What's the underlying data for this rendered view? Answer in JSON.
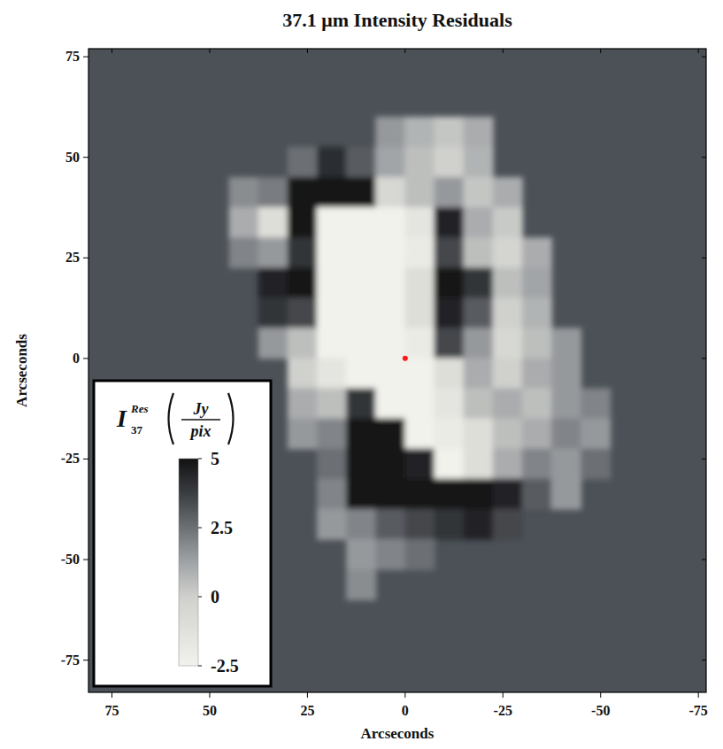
{
  "chart_data": {
    "type": "heatmap",
    "title": "37.1 μm Intensity Residuals",
    "x_label": "Arcseconds",
    "y_label": "Arcseconds",
    "xlim": [
      81,
      -77
    ],
    "ylim": [
      -83,
      77
    ],
    "xticks": [
      75,
      50,
      25,
      0,
      -25,
      -50,
      -75
    ],
    "yticks": [
      75,
      50,
      25,
      0,
      -25,
      -50,
      -75
    ],
    "x": [
      63.75,
      56.25,
      48.75,
      41.25,
      33.75,
      26.25,
      18.75,
      11.25,
      3.75,
      -3.75,
      -11.25,
      -18.75,
      -26.25,
      -33.75,
      -41.25,
      -48.75,
      -56.25
    ],
    "y": [
      63.75,
      56.25,
      48.75,
      41.25,
      33.75,
      26.25,
      18.75,
      11.25,
      3.75,
      -3.75,
      -11.25,
      -18.75,
      -26.25,
      -33.75,
      -41.25,
      -48.75,
      -56.25,
      -63.75
    ],
    "cells": [
      [
        null,
        null,
        null,
        null,
        null,
        null,
        null,
        null,
        null,
        null,
        null,
        null,
        null,
        null,
        null,
        null,
        null
      ],
      [
        null,
        null,
        null,
        null,
        null,
        null,
        null,
        null,
        1.5,
        0.8,
        0.3,
        1.0,
        null,
        null,
        null,
        null,
        null
      ],
      [
        null,
        null,
        null,
        null,
        null,
        2.5,
        4.2,
        3.0,
        1.2,
        0.5,
        0.0,
        0.8,
        null,
        null,
        null,
        null,
        null
      ],
      [
        null,
        null,
        null,
        1.8,
        2.2,
        5.5,
        5.8,
        5.0,
        -0.5,
        0.5,
        1.5,
        0.3,
        1.0,
        null,
        null,
        null,
        null
      ],
      [
        null,
        null,
        null,
        1.0,
        -1.0,
        5.5,
        -2.8,
        -3,
        -3,
        -1.5,
        4.5,
        1.0,
        0.2,
        null,
        null,
        null,
        null
      ],
      [
        null,
        null,
        null,
        2.0,
        1.5,
        4.0,
        -3,
        -3,
        -3,
        -2.0,
        3.5,
        0.5,
        -0.3,
        1.0,
        null,
        null,
        null
      ],
      [
        null,
        null,
        null,
        null,
        4.5,
        5.0,
        -3,
        -3,
        -3,
        -1.0,
        5.0,
        4.0,
        0.5,
        1.2,
        null,
        null,
        null
      ],
      [
        null,
        null,
        null,
        null,
        4.0,
        3.5,
        -3,
        -3,
        -3,
        -1.0,
        4.5,
        3.0,
        0.0,
        0.8,
        null,
        null,
        null
      ],
      [
        null,
        null,
        null,
        null,
        1.5,
        0.5,
        -2.5,
        -3,
        -3,
        -2.0,
        3.5,
        1.5,
        -0.5,
        0.5,
        1.5,
        null,
        null
      ],
      [
        null,
        null,
        null,
        null,
        null,
        0.0,
        -1.5,
        -3,
        -3,
        -2.5,
        -1.0,
        1.0,
        0.0,
        1.0,
        1.5,
        null,
        null
      ],
      [
        null,
        null,
        null,
        null,
        null,
        1.0,
        0.5,
        4.0,
        -3,
        -2.5,
        -1.5,
        0.5,
        1.0,
        0.5,
        1.5,
        2.0,
        null
      ],
      [
        null,
        null,
        null,
        null,
        null,
        1.5,
        2.0,
        5.5,
        5.0,
        -3,
        -2.0,
        -1.0,
        0.5,
        1.0,
        2.0,
        1.5,
        null
      ],
      [
        null,
        null,
        null,
        null,
        null,
        null,
        2.5,
        5.5,
        5.5,
        4.5,
        -2.5,
        -1.0,
        1.0,
        2.0,
        1.5,
        2.5,
        null
      ],
      [
        null,
        null,
        null,
        null,
        null,
        null,
        2.0,
        5.0,
        5.5,
        5.5,
        5.0,
        5.0,
        4.5,
        3.0,
        1.5,
        null,
        null
      ],
      [
        null,
        null,
        null,
        null,
        null,
        null,
        1.5,
        2.0,
        3.0,
        3.5,
        4.0,
        4.5,
        3.5,
        null,
        null,
        null,
        null
      ],
      [
        null,
        null,
        null,
        null,
        null,
        null,
        null,
        1.5,
        2.0,
        2.5,
        null,
        null,
        null,
        null,
        null,
        null,
        null
      ],
      [
        null,
        null,
        null,
        null,
        null,
        null,
        null,
        1.8,
        null,
        null,
        null,
        null,
        null,
        null,
        null,
        null,
        null
      ],
      [
        null,
        null,
        null,
        null,
        null,
        null,
        null,
        null,
        null,
        null,
        null,
        null,
        null,
        null,
        null,
        null,
        null
      ]
    ],
    "markers": [
      {
        "x": 0,
        "y": 0,
        "color": "#ff1a1a"
      }
    ],
    "colorbar": {
      "range": [
        -2.5,
        5
      ],
      "ticks": [
        -2.5,
        0,
        2.5,
        5
      ],
      "label": "I",
      "label_superscript": "Res",
      "label_subscript": "37",
      "unit_numerator": "Jy",
      "unit_denominator": "pix"
    }
  }
}
